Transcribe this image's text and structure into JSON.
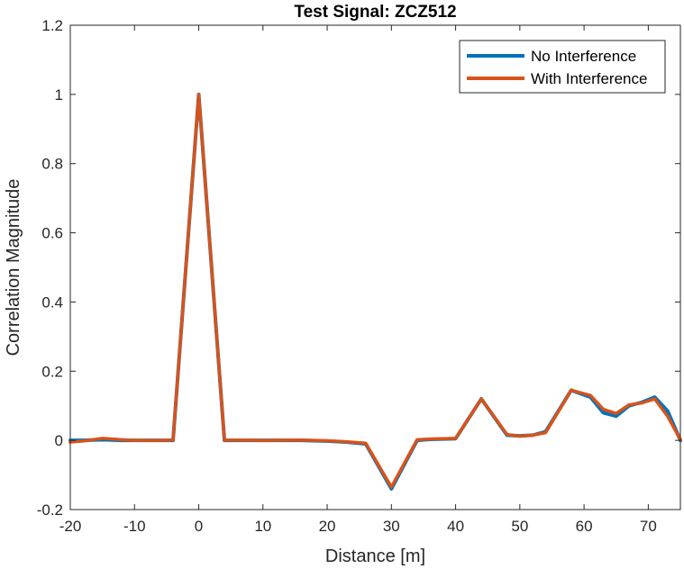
{
  "chart_data": {
    "type": "line",
    "title": "Test Signal: ZCZ512",
    "xlabel": "Distance [m]",
    "ylabel": "Correlation Magnitude",
    "xlim": [
      -20,
      75
    ],
    "ylim": [
      -0.2,
      1.2
    ],
    "xticks": [
      -20,
      -10,
      0,
      10,
      20,
      30,
      40,
      50,
      60,
      70
    ],
    "xtick_labels": [
      "-20",
      "-10",
      "0",
      "10",
      "20",
      "30",
      "40",
      "50",
      "60",
      "70"
    ],
    "yticks": [
      -0.2,
      0,
      0.2,
      0.4,
      0.6,
      0.8,
      1,
      1.2
    ],
    "ytick_labels": [
      "-0.2",
      "0",
      "0.2",
      "0.4",
      "0.6",
      "0.8",
      "1",
      "1.2"
    ],
    "grid": false,
    "legend_position": "top-right",
    "series": [
      {
        "name": "No Interference",
        "color": "#0072BD",
        "x": [
          -20,
          -18,
          -15,
          -12,
          -10,
          -6,
          -4,
          0,
          4,
          10,
          16,
          20,
          23,
          26,
          30,
          34,
          36,
          40,
          44,
          48,
          50,
          52,
          54,
          58,
          61,
          63,
          65,
          67,
          69,
          71,
          73,
          75
        ],
        "y": [
          0,
          0,
          0.002,
          0,
          0,
          0,
          0,
          1,
          0,
          0,
          0,
          -0.002,
          -0.005,
          -0.01,
          -0.14,
          0,
          0.003,
          0.005,
          0.12,
          0.015,
          0.013,
          0.015,
          0.025,
          0.145,
          0.125,
          0.08,
          0.07,
          0.1,
          0.11,
          0.125,
          0.085,
          0
        ]
      },
      {
        "name": "With Interference",
        "color": "#D95319",
        "x": [
          -20,
          -18,
          -15,
          -12,
          -10,
          -6,
          -4,
          0,
          4,
          10,
          16,
          20,
          23,
          26,
          30,
          34,
          36,
          40,
          44,
          48,
          50,
          52,
          54,
          58,
          61,
          63,
          65,
          67,
          69,
          71,
          73,
          75
        ],
        "y": [
          -0.005,
          -0.002,
          0.006,
          0.002,
          0,
          0,
          0.001,
          1,
          0.001,
          0,
          0.001,
          -0.001,
          -0.004,
          -0.008,
          -0.135,
          0.002,
          0.004,
          0.006,
          0.12,
          0.017,
          0.012,
          0.015,
          0.022,
          0.145,
          0.13,
          0.09,
          0.078,
          0.103,
          0.108,
          0.12,
          0.07,
          0.002
        ]
      }
    ]
  }
}
